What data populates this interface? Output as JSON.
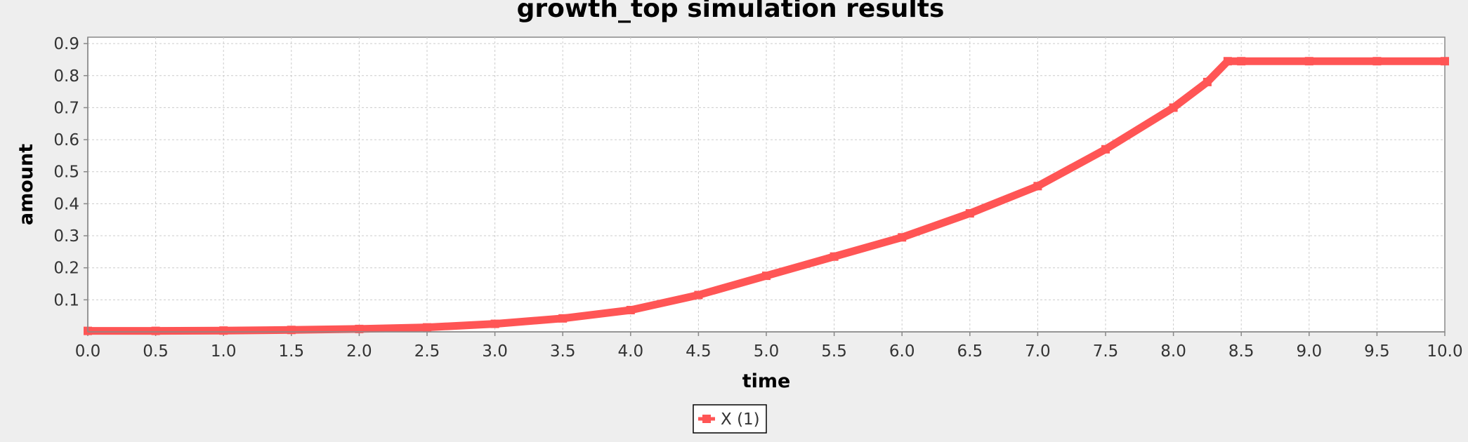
{
  "chart_data": {
    "type": "line",
    "title": "growth_top simulation results",
    "xlabel": "time",
    "ylabel": "amount",
    "xlim": [
      0,
      10
    ],
    "ylim": [
      0,
      0.92
    ],
    "x_ticks": [
      "0.0",
      "0.5",
      "1.0",
      "1.5",
      "2.0",
      "2.5",
      "3.0",
      "3.5",
      "4.0",
      "4.5",
      "5.0",
      "5.5",
      "6.0",
      "6.5",
      "7.0",
      "7.5",
      "8.0",
      "8.5",
      "9.0",
      "9.5",
      "10.0"
    ],
    "y_ticks": [
      "0.1",
      "0.2",
      "0.3",
      "0.4",
      "0.5",
      "0.6",
      "0.7",
      "0.8",
      "0.9"
    ],
    "grid": true,
    "legend_position": "bottom",
    "series": [
      {
        "name": "X (1)",
        "color": "#ff5555",
        "x": [
          0,
          0.5,
          1.0,
          1.5,
          2.0,
          2.5,
          3.0,
          3.5,
          4.0,
          4.5,
          5.0,
          5.5,
          6.0,
          6.5,
          7.0,
          7.5,
          8.0,
          8.25,
          8.4,
          8.5,
          9.0,
          9.5,
          10.0
        ],
        "y": [
          0.003,
          0.003,
          0.004,
          0.006,
          0.009,
          0.014,
          0.025,
          0.042,
          0.068,
          0.115,
          0.175,
          0.235,
          0.295,
          0.37,
          0.455,
          0.57,
          0.7,
          0.78,
          0.845,
          0.845,
          0.845,
          0.845,
          0.845
        ]
      }
    ]
  }
}
